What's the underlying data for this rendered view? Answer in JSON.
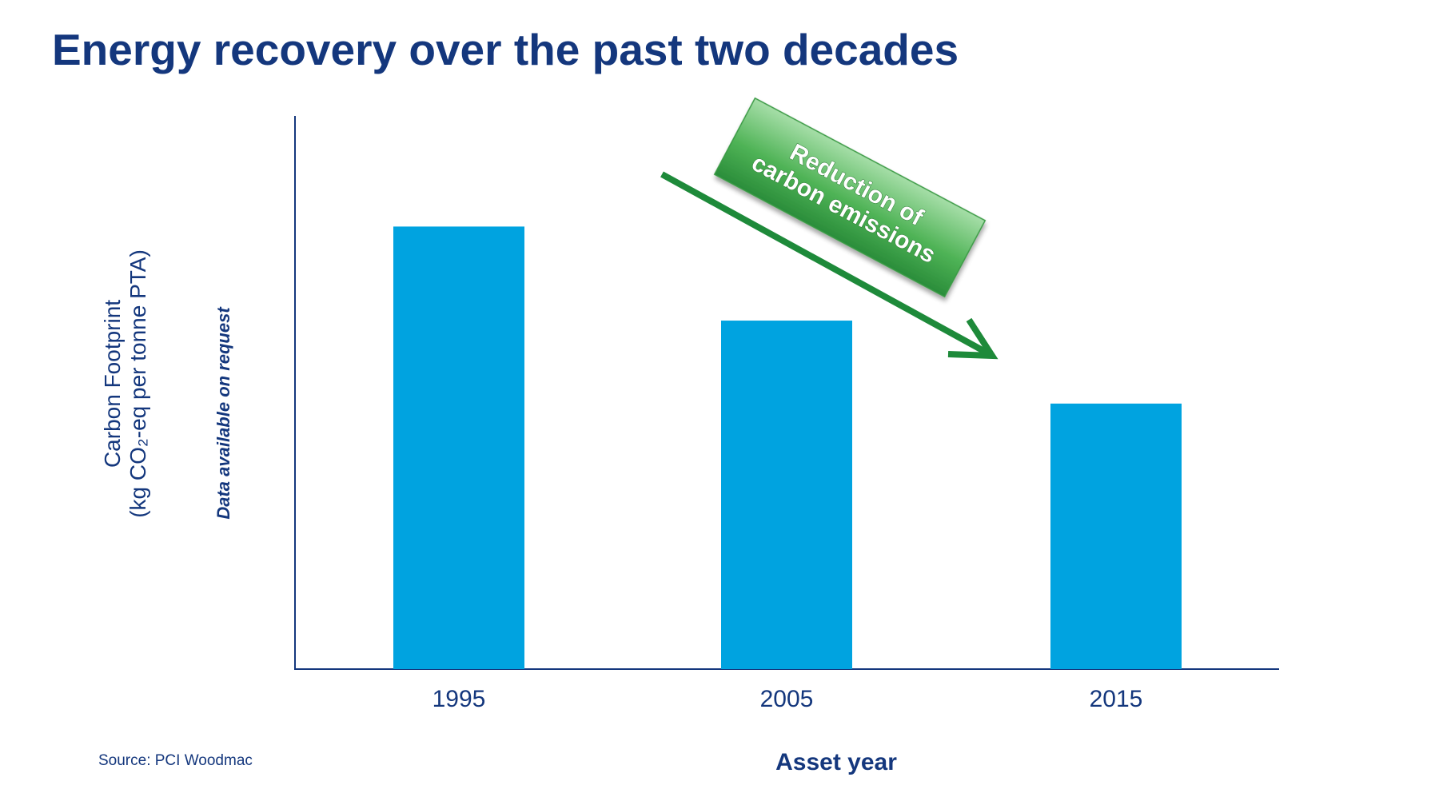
{
  "chart_data": {
    "type": "bar",
    "title": "Energy recovery over the past two decades",
    "ylabel": [
      "Carbon Footprint",
      "(kg CO₂-eq per tonne PTA)"
    ],
    "xlabel": "Asset year",
    "note": "Data available on request",
    "annotation": [
      "Reduction of",
      "carbon emissions"
    ],
    "source": "Source: PCI  Woodmac",
    "categories": [
      "1995",
      "2005",
      "2015"
    ],
    "values": [
      80,
      63,
      48
    ],
    "color": "#00a3e0",
    "ylim": [
      0,
      100
    ]
  }
}
